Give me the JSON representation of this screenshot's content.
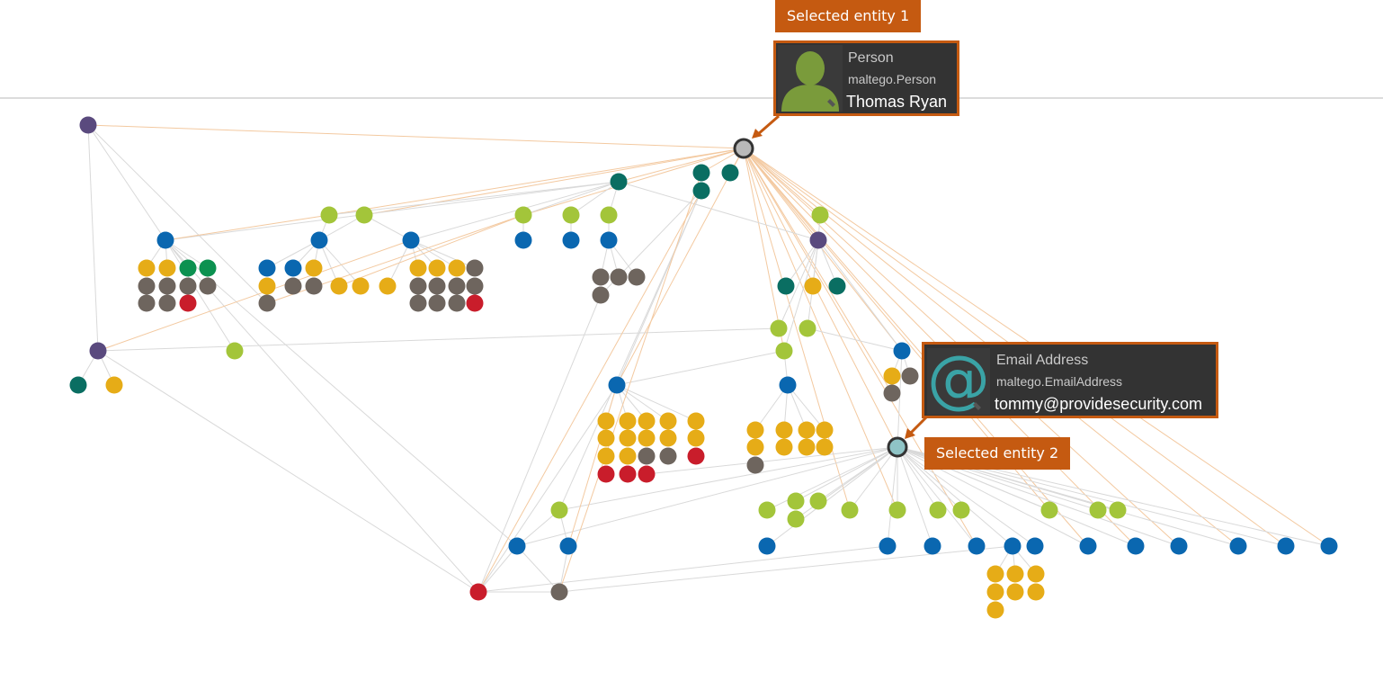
{
  "colors": {
    "accent": "#c55a11",
    "card_bg": "#333333",
    "purple": "#5a4a7e",
    "teal": "#0a6e62",
    "lime": "#a3c53a",
    "blue": "#0a67b0",
    "yellow": "#e6ac17",
    "gray": "#6e655e",
    "red": "#c91d2b",
    "green": "#0c9150",
    "selected_person": "#b9b9b9",
    "selected_email": "#8fc4c6"
  },
  "callouts": {
    "entity1_label": "Selected entity 1",
    "entity2_label": "Selected entity 2"
  },
  "entity1": {
    "icon": "person-silhouette-icon",
    "type": "Person",
    "class": "maltego.Person",
    "value": "Thomas Ryan"
  },
  "entity2": {
    "icon": "at-sign-icon",
    "type": "Email Address",
    "class": "maltego.EmailAddress",
    "value": "tommy@providesecurity.com"
  }
}
